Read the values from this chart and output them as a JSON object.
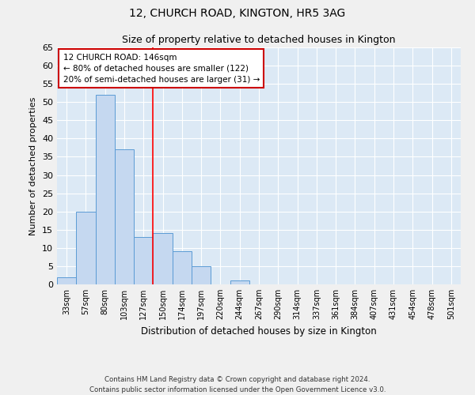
{
  "title_line1": "12, CHURCH ROAD, KINGTON, HR5 3AG",
  "title_line2": "Size of property relative to detached houses in Kington",
  "xlabel": "Distribution of detached houses by size in Kington",
  "ylabel": "Number of detached properties",
  "categories": [
    "33sqm",
    "57sqm",
    "80sqm",
    "103sqm",
    "127sqm",
    "150sqm",
    "174sqm",
    "197sqm",
    "220sqm",
    "244sqm",
    "267sqm",
    "290sqm",
    "314sqm",
    "337sqm",
    "361sqm",
    "384sqm",
    "407sqm",
    "431sqm",
    "454sqm",
    "478sqm",
    "501sqm"
  ],
  "values": [
    2,
    20,
    52,
    37,
    13,
    14,
    9,
    5,
    0,
    1,
    0,
    0,
    0,
    0,
    0,
    0,
    0,
    0,
    0,
    0,
    0
  ],
  "bar_color": "#c5d8f0",
  "bar_edge_color": "#5b9bd5",
  "red_line_x": 4.5,
  "annotation_text": "12 CHURCH ROAD: 146sqm\n← 80% of detached houses are smaller (122)\n20% of semi-detached houses are larger (31) →",
  "annotation_box_color": "#ffffff",
  "annotation_box_edge": "#cc0000",
  "ylim": [
    0,
    65
  ],
  "yticks": [
    0,
    5,
    10,
    15,
    20,
    25,
    30,
    35,
    40,
    45,
    50,
    55,
    60,
    65
  ],
  "bg_color": "#dce9f5",
  "fig_color": "#f0f0f0",
  "grid_color": "#ffffff",
  "footnote": "Contains HM Land Registry data © Crown copyright and database right 2024.\nContains public sector information licensed under the Open Government Licence v3.0."
}
